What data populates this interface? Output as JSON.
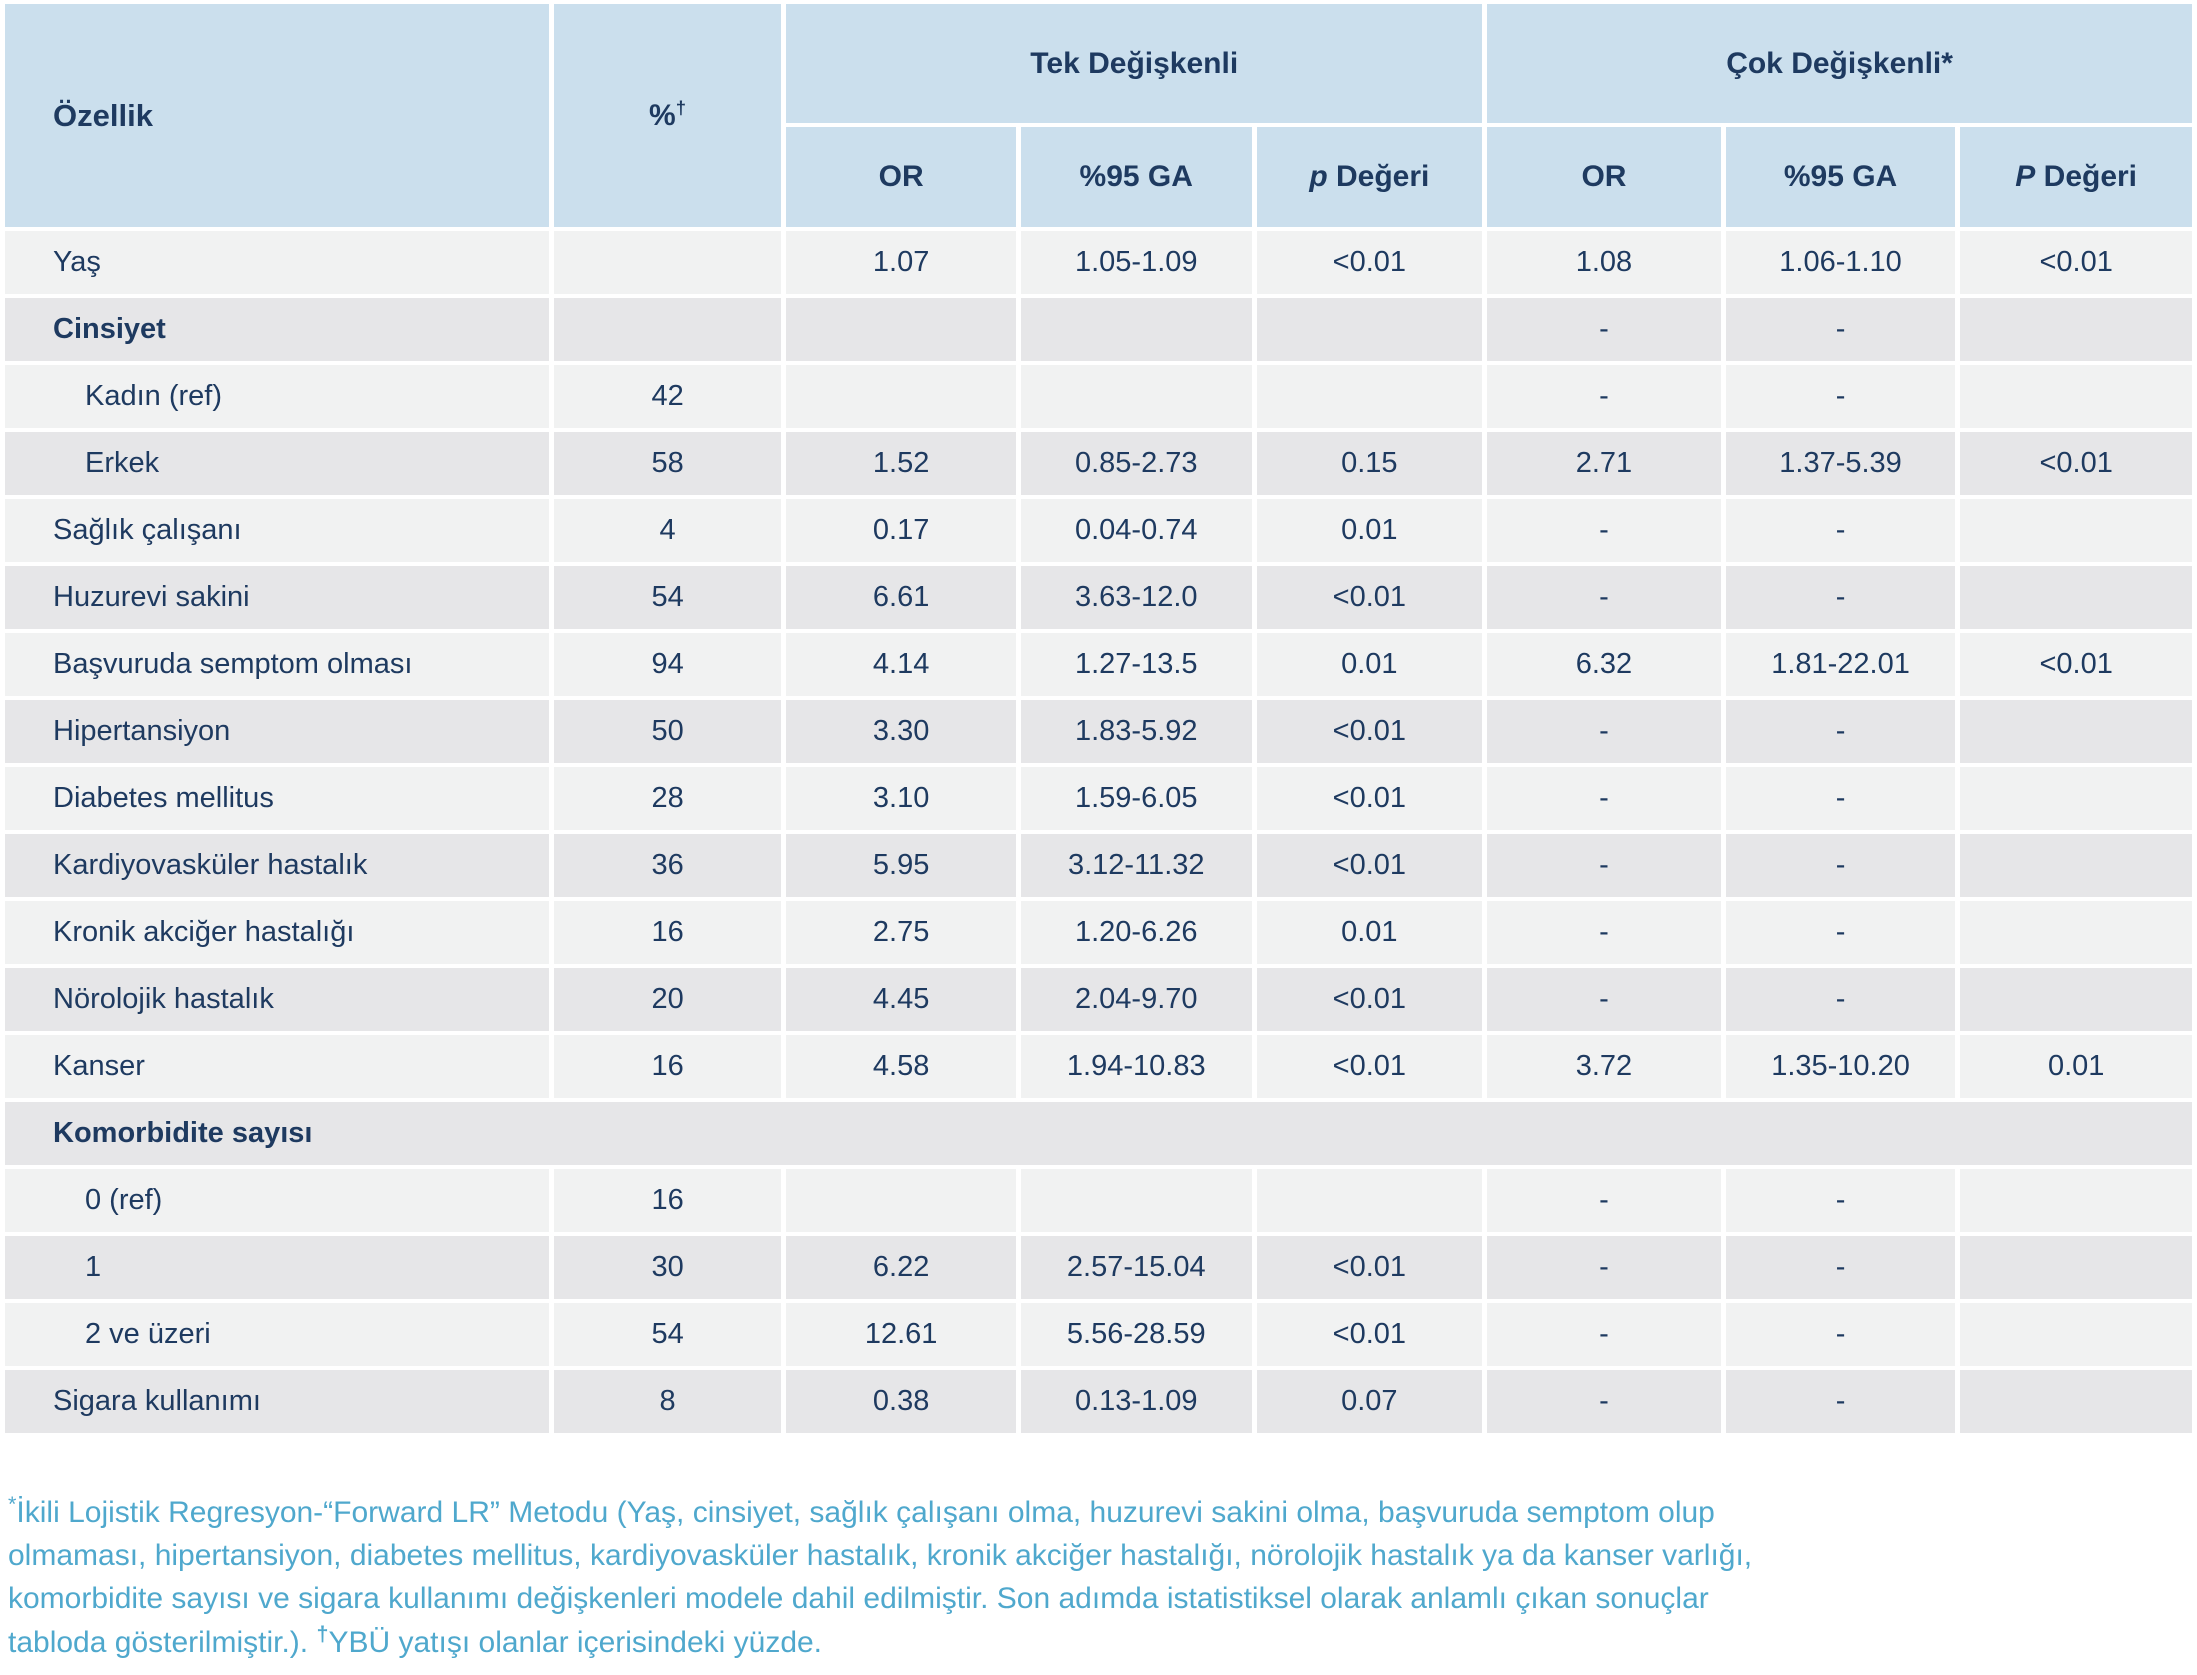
{
  "table": {
    "header": {
      "feature": "Özellik",
      "percent_symbol": "%",
      "percent_sup": "†",
      "group_uni": "Tek Değişkenli",
      "group_multi": "Çok Değişkenli*",
      "or_uni": "OR",
      "ci_uni": "%95 GA",
      "p_uni_letter": "p",
      "p_uni_word": " Değeri",
      "or_multi": "OR",
      "ci_multi": "%95 GA",
      "p_multi_letter": "P",
      "p_multi_word": " Değeri"
    },
    "rows": [
      {
        "label": "Yaş",
        "indent": false,
        "bold": false,
        "span": false,
        "pct": "",
        "u_or": "1.07",
        "u_ci": "1.05-1.09",
        "u_p": "<0.01",
        "m_or": "1.08",
        "m_ci": "1.06-1.10",
        "m_p": "<0.01"
      },
      {
        "label": "Cinsiyet",
        "indent": false,
        "bold": true,
        "span": false,
        "pct": "",
        "u_or": "",
        "u_ci": "",
        "u_p": "",
        "m_or": "-",
        "m_ci": "-",
        "m_p": ""
      },
      {
        "label": "Kadın (ref)",
        "indent": true,
        "bold": false,
        "span": false,
        "pct": "42",
        "u_or": "",
        "u_ci": "",
        "u_p": "",
        "m_or": "-",
        "m_ci": "-",
        "m_p": ""
      },
      {
        "label": "Erkek",
        "indent": true,
        "bold": false,
        "span": false,
        "pct": "58",
        "u_or": "1.52",
        "u_ci": "0.85-2.73",
        "u_p": "0.15",
        "m_or": "2.71",
        "m_ci": "1.37-5.39",
        "m_p": "<0.01"
      },
      {
        "label": "Sağlık çalışanı",
        "indent": false,
        "bold": false,
        "span": false,
        "pct": "4",
        "u_or": "0.17",
        "u_ci": "0.04-0.74",
        "u_p": "0.01",
        "m_or": "-",
        "m_ci": "-",
        "m_p": ""
      },
      {
        "label": "Huzurevi sakini",
        "indent": false,
        "bold": false,
        "span": false,
        "pct": "54",
        "u_or": "6.61",
        "u_ci": "3.63-12.0",
        "u_p": "<0.01",
        "m_or": "-",
        "m_ci": "-",
        "m_p": ""
      },
      {
        "label": "Başvuruda semptom olması",
        "indent": false,
        "bold": false,
        "span": false,
        "pct": "94",
        "u_or": "4.14",
        "u_ci": "1.27-13.5",
        "u_p": "0.01",
        "m_or": "6.32",
        "m_ci": "1.81-22.01",
        "m_p": "<0.01"
      },
      {
        "label": "Hipertansiyon",
        "indent": false,
        "bold": false,
        "span": false,
        "pct": "50",
        "u_or": "3.30",
        "u_ci": "1.83-5.92",
        "u_p": "<0.01",
        "m_or": "-",
        "m_ci": "-",
        "m_p": ""
      },
      {
        "label": "Diabetes mellitus",
        "indent": false,
        "bold": false,
        "span": false,
        "pct": "28",
        "u_or": "3.10",
        "u_ci": "1.59-6.05",
        "u_p": "<0.01",
        "m_or": "-",
        "m_ci": "-",
        "m_p": ""
      },
      {
        "label": "Kardiyovasküler hastalık",
        "indent": false,
        "bold": false,
        "span": false,
        "pct": "36",
        "u_or": "5.95",
        "u_ci": "3.12-11.32",
        "u_p": "<0.01",
        "m_or": "-",
        "m_ci": "-",
        "m_p": ""
      },
      {
        "label": "Kronik akciğer hastalığı",
        "indent": false,
        "bold": false,
        "span": false,
        "pct": "16",
        "u_or": "2.75",
        "u_ci": "1.20-6.26",
        "u_p": "0.01",
        "m_or": "-",
        "m_ci": "-",
        "m_p": ""
      },
      {
        "label": "Nörolojik hastalık",
        "indent": false,
        "bold": false,
        "span": false,
        "pct": "20",
        "u_or": "4.45",
        "u_ci": "2.04-9.70",
        "u_p": "<0.01",
        "m_or": "-",
        "m_ci": "-",
        "m_p": ""
      },
      {
        "label": "Kanser",
        "indent": false,
        "bold": false,
        "span": false,
        "pct": "16",
        "u_or": "4.58",
        "u_ci": "1.94-10.83",
        "u_p": "<0.01",
        "m_or": "3.72",
        "m_ci": "1.35-10.20",
        "m_p": "0.01"
      },
      {
        "label": "Komorbidite sayısı",
        "indent": false,
        "bold": true,
        "span": true,
        "pct": "",
        "u_or": "",
        "u_ci": "",
        "u_p": "",
        "m_or": "",
        "m_ci": "",
        "m_p": ""
      },
      {
        "label": "0 (ref)",
        "indent": true,
        "bold": false,
        "span": false,
        "pct": "16",
        "u_or": "",
        "u_ci": "",
        "u_p": "",
        "m_or": "-",
        "m_ci": "-",
        "m_p": ""
      },
      {
        "label": "1",
        "indent": true,
        "bold": false,
        "span": false,
        "pct": "30",
        "u_or": "6.22",
        "u_ci": "2.57-15.04",
        "u_p": "<0.01",
        "m_or": "-",
        "m_ci": "-",
        "m_p": ""
      },
      {
        "label": "2 ve üzeri",
        "indent": true,
        "bold": false,
        "span": false,
        "pct": "54",
        "u_or": "12.61",
        "u_ci": "5.56-28.59",
        "u_p": "<0.01",
        "m_or": "-",
        "m_ci": "-",
        "m_p": ""
      },
      {
        "label": "Sigara kullanımı",
        "indent": false,
        "bold": false,
        "span": false,
        "pct": "8",
        "u_or": "0.38",
        "u_ci": "0.13-1.09",
        "u_p": "0.07",
        "m_or": "-",
        "m_ci": "-",
        "m_p": ""
      }
    ]
  },
  "footnote": {
    "star": "*",
    "text1": "İkili Lojistik Regresyon-“Forward LR” Metodu (Yaş, cinsiyet, sağlık çalışanı olma, huzurevi sakini olma, başvuruda semptom olup olmaması, hipertansiyon, diabetes mellitus, kardiyovasküler hastalık, kronik akciğer hastalığı, nörolojik hastalık ya da kanser varlığı, komorbidite sayısı ve sigara kullanımı değişkenleri modele dahil edilmiştir. Son adımda istatistiksel olarak anlamlı çıkan sonuçlar tabloda gösterilmiştir.). ",
    "dagger": "†",
    "text2": "YBÜ yatışı olanlar içerisindeki yüzde."
  },
  "colors": {
    "header_bg": "#cbdfed",
    "row_light": "#f1f2f2",
    "row_dark": "#e6e6e8",
    "text": "#1e3a60",
    "footnote": "#4fa8cd"
  }
}
